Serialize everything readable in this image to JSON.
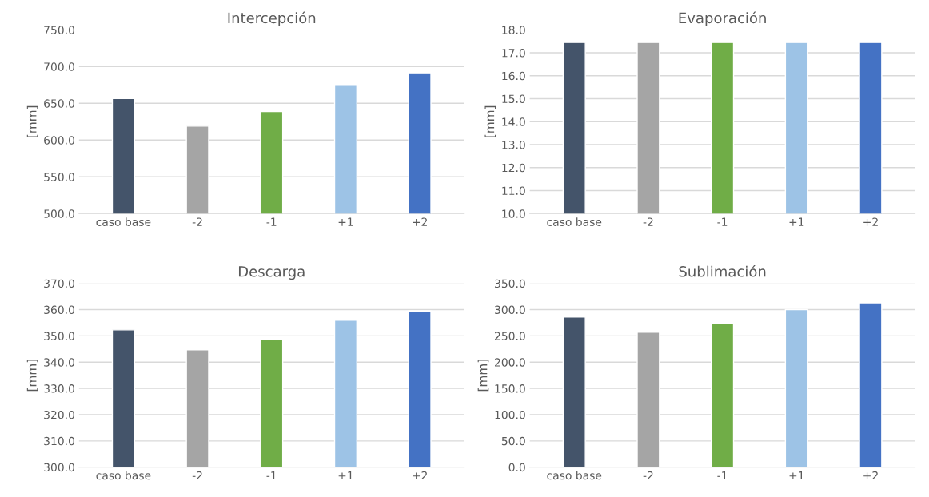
{
  "chart_data": [
    {
      "type": "bar",
      "title": "Intercepción",
      "ylabel": "[mm]",
      "categories": [
        "caso base",
        "-2",
        "-1",
        "+1",
        "+2"
      ],
      "values": [
        656.5,
        619,
        639,
        674.5,
        691.5
      ],
      "colors": [
        "#44546a",
        "#a5a5a5",
        "#70ad47",
        "#9dc3e6",
        "#4472c4"
      ],
      "ylim": [
        500,
        750
      ],
      "yticks": [
        {
          "value": 500,
          "label": "500.0"
        },
        {
          "value": 550,
          "label": "550.0"
        },
        {
          "value": 600,
          "label": "600.0"
        },
        {
          "value": 650,
          "label": "650.0"
        },
        {
          "value": 700,
          "label": "700.0"
        },
        {
          "value": 750,
          "label": "750.0"
        }
      ],
      "grid": "y"
    },
    {
      "type": "bar",
      "title": "Evaporación",
      "ylabel": "[mm]",
      "categories": [
        "caso base",
        "-2",
        "-1",
        "+1",
        "+2"
      ],
      "values": [
        17.45,
        17.45,
        17.45,
        17.45,
        17.45
      ],
      "colors": [
        "#44546a",
        "#a5a5a5",
        "#70ad47",
        "#9dc3e6",
        "#4472c4"
      ],
      "ylim": [
        10,
        18
      ],
      "yticks": [
        {
          "value": 10,
          "label": "10.0"
        },
        {
          "value": 11,
          "label": "11.0"
        },
        {
          "value": 12,
          "label": "12.0"
        },
        {
          "value": 13,
          "label": "13.0"
        },
        {
          "value": 14,
          "label": "14.0"
        },
        {
          "value": 15,
          "label": "15.0"
        },
        {
          "value": 16,
          "label": "16.0"
        },
        {
          "value": 17,
          "label": "17.0"
        },
        {
          "value": 18,
          "label": "18.0"
        }
      ],
      "grid": "y"
    },
    {
      "type": "bar",
      "title": "Descarga",
      "ylabel": "[mm]",
      "categories": [
        "caso base",
        "-2",
        "-1",
        "+1",
        "+2"
      ],
      "values": [
        352.3,
        344.7,
        348.5,
        356.0,
        359.5
      ],
      "colors": [
        "#44546a",
        "#a5a5a5",
        "#70ad47",
        "#9dc3e6",
        "#4472c4"
      ],
      "ylim": [
        300,
        370
      ],
      "yticks": [
        {
          "value": 300,
          "label": "300.0"
        },
        {
          "value": 310,
          "label": "310.0"
        },
        {
          "value": 320,
          "label": "320.0"
        },
        {
          "value": 330,
          "label": "330.0"
        },
        {
          "value": 340,
          "label": "340.0"
        },
        {
          "value": 350,
          "label": "350.0"
        },
        {
          "value": 360,
          "label": "360.0"
        },
        {
          "value": 370,
          "label": "370.0"
        }
      ],
      "grid": "y"
    },
    {
      "type": "bar",
      "title": "Sublimación",
      "ylabel": "[mm]",
      "categories": [
        "caso base",
        "-2",
        "-1",
        "+1",
        "+2"
      ],
      "values": [
        286,
        257,
        273,
        300,
        313
      ],
      "colors": [
        "#44546a",
        "#a5a5a5",
        "#70ad47",
        "#9dc3e6",
        "#4472c4"
      ],
      "ylim": [
        0,
        350
      ],
      "yticks": [
        {
          "value": 0,
          "label": "0.0"
        },
        {
          "value": 50,
          "label": "50.0"
        },
        {
          "value": 100,
          "label": "100.0"
        },
        {
          "value": 150,
          "label": "150.0"
        },
        {
          "value": 200,
          "label": "200.0"
        },
        {
          "value": 250,
          "label": "250.0"
        },
        {
          "value": 300,
          "label": "300.0"
        },
        {
          "value": 350,
          "label": "350.0"
        }
      ],
      "grid": "y"
    }
  ]
}
